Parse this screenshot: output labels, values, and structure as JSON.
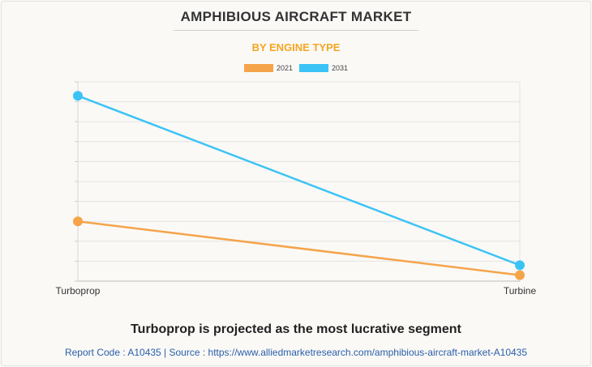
{
  "chart_data": {
    "type": "line",
    "title": "AMPHIBIOUS AIRCRAFT MARKET",
    "subtitle": "BY ENGINE TYPE",
    "categories": [
      "Turboprop",
      "Turbine"
    ],
    "series": [
      {
        "name": "2021",
        "color": "#f5a44a",
        "values": [
          30,
          3
        ]
      },
      {
        "name": "2031",
        "color": "#3cc3f5",
        "values": [
          93,
          8
        ]
      }
    ],
    "ylim": [
      0,
      100
    ],
    "grid": true,
    "legend": "top-center"
  },
  "footer": {
    "headline": "Turboprop is projected as the most lucrative segment",
    "source": "Report Code : A10435  |  Source : https://www.alliedmarketresearch.com/amphibious-aircraft-market-A10435"
  }
}
